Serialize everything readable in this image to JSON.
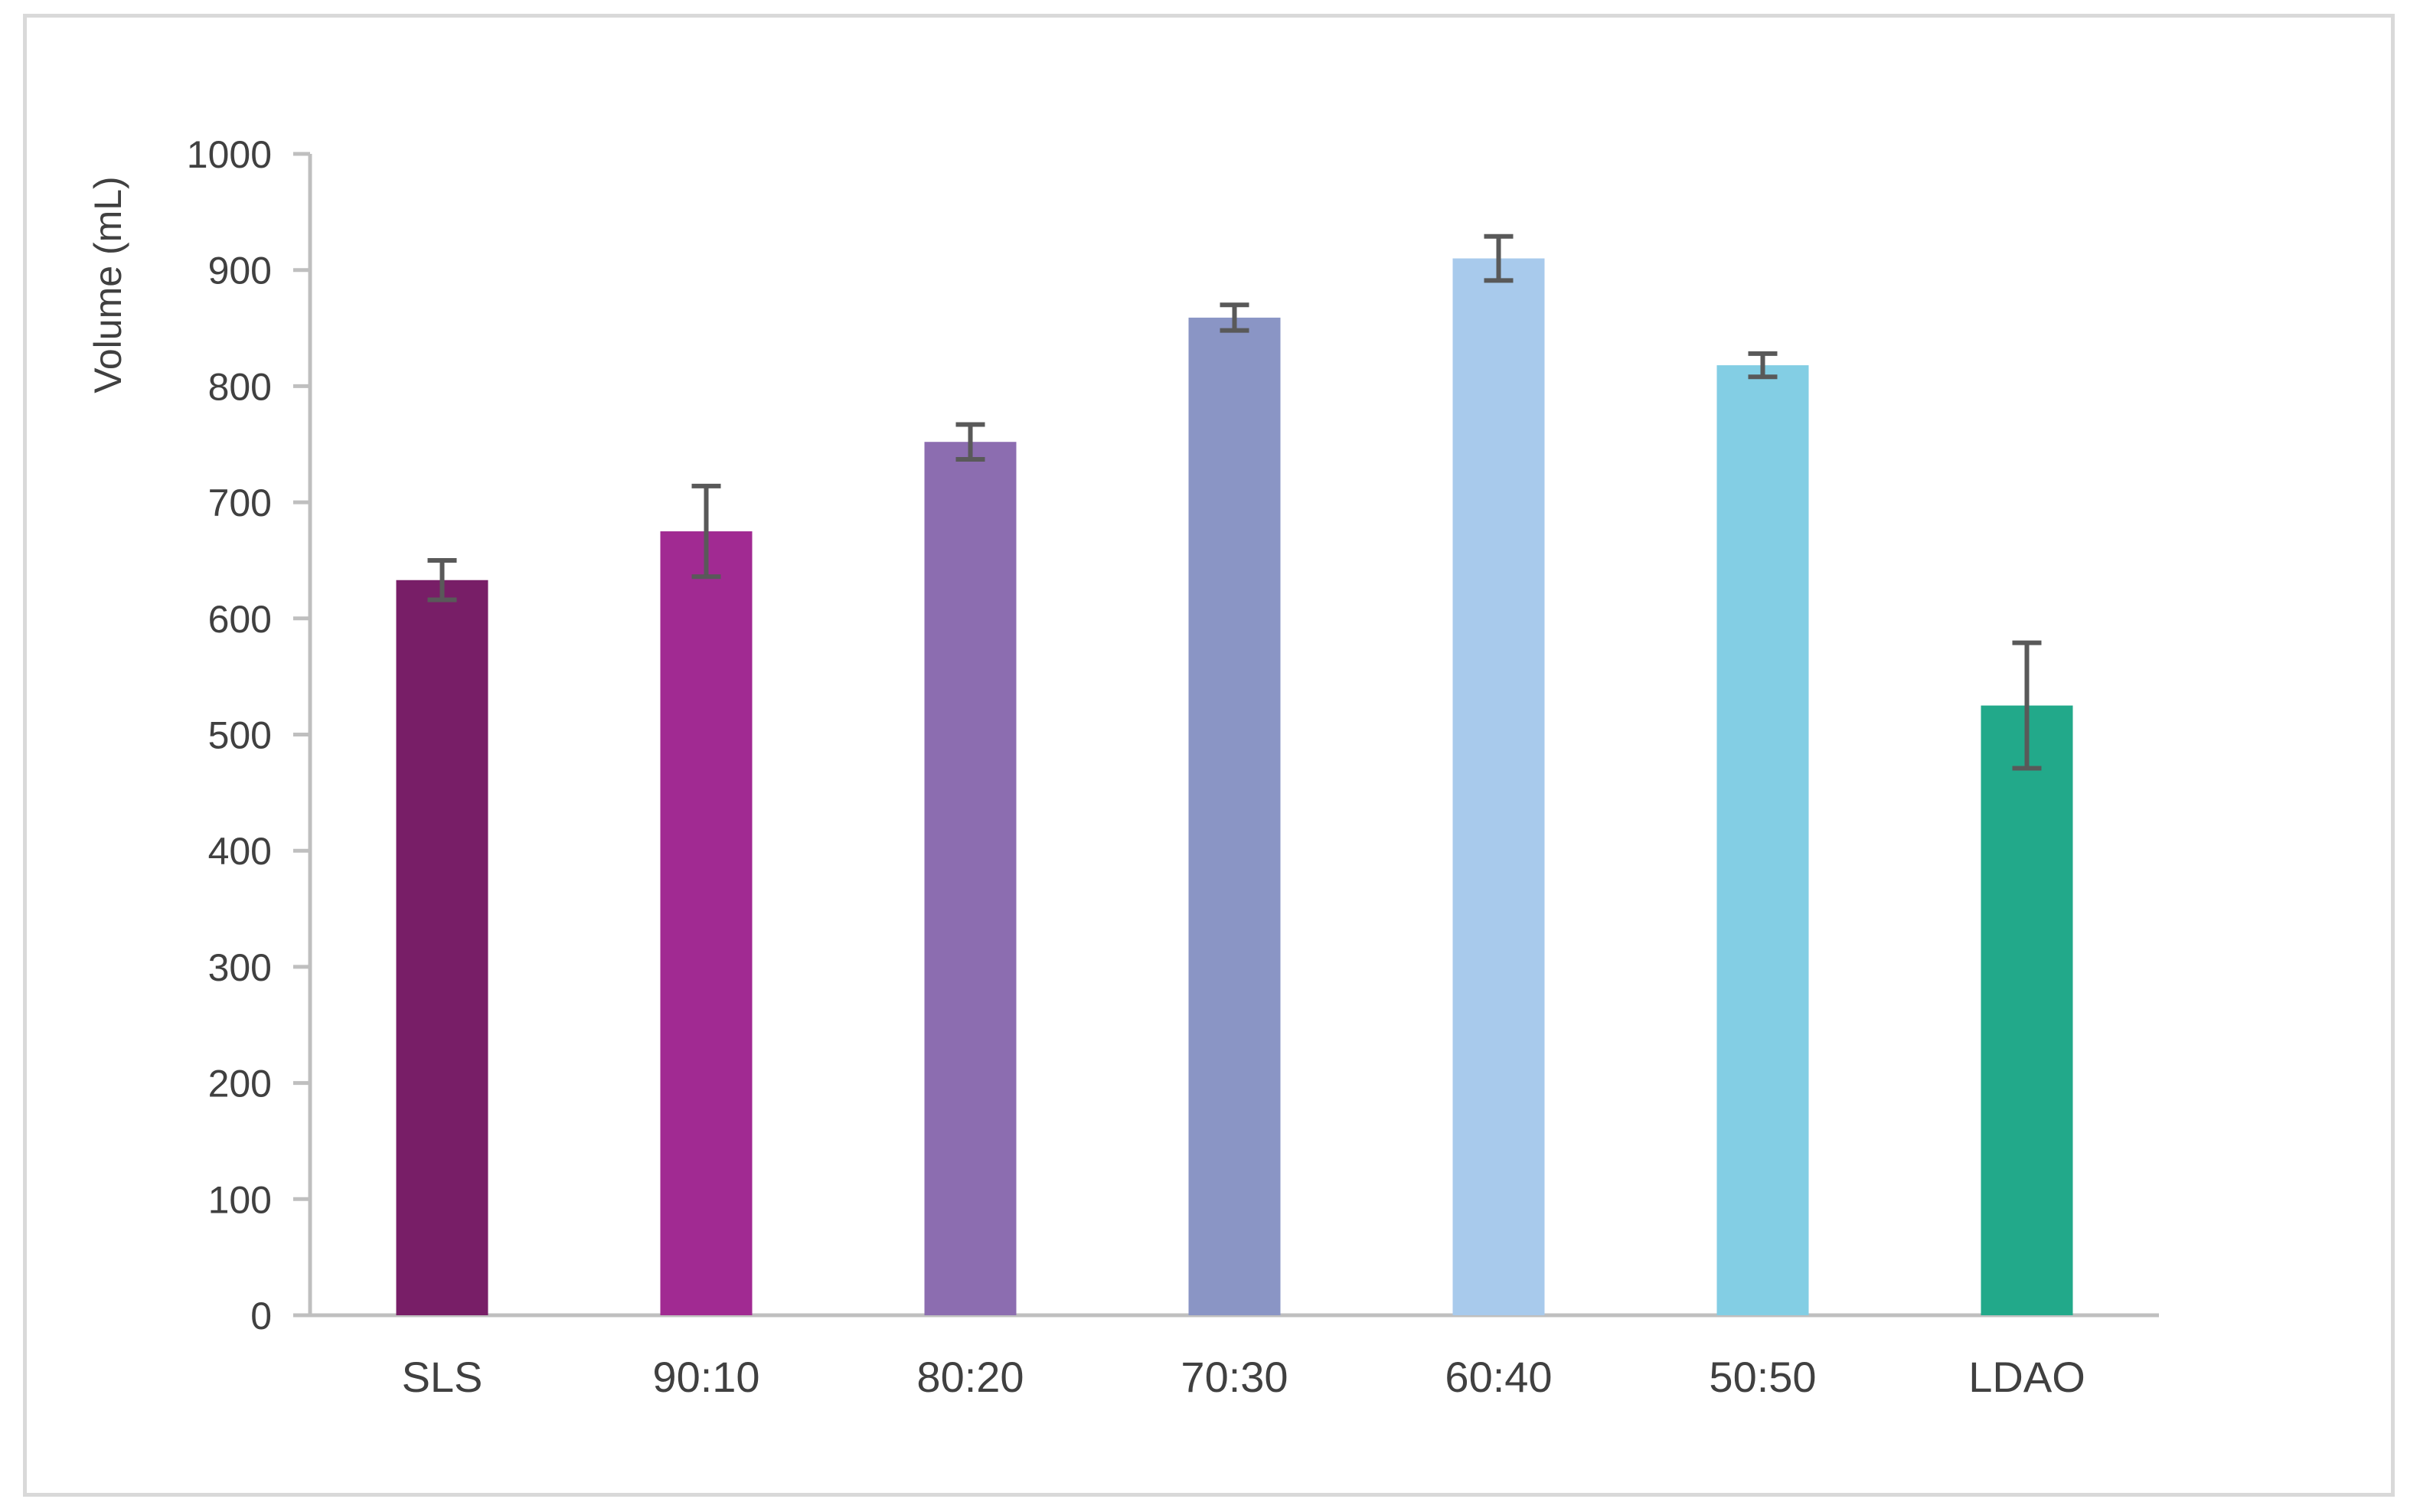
{
  "chart_data": {
    "type": "bar",
    "title": "",
    "xlabel": "",
    "ylabel": "Volume (mL)",
    "categories": [
      "SLS",
      "90:10",
      "80:20",
      "70:30",
      "60:40",
      "50:50",
      "LDAO"
    ],
    "values": [
      633,
      675,
      752,
      859,
      910,
      818,
      525
    ],
    "error": [
      17,
      39,
      15,
      11,
      19,
      10,
      54
    ],
    "colors": [
      "#781E67",
      "#A12A92",
      "#8C6DB0",
      "#8A95C5",
      "#A8CAEC",
      "#83CEE4",
      "#22A98A"
    ],
    "error_color": "#595959",
    "ylim": [
      0,
      1000
    ],
    "yticks": [
      "0",
      "100",
      "200",
      "300",
      "400",
      "500",
      "600",
      "700",
      "800",
      "900",
      "1000"
    ],
    "grid": false,
    "legend": "none"
  }
}
